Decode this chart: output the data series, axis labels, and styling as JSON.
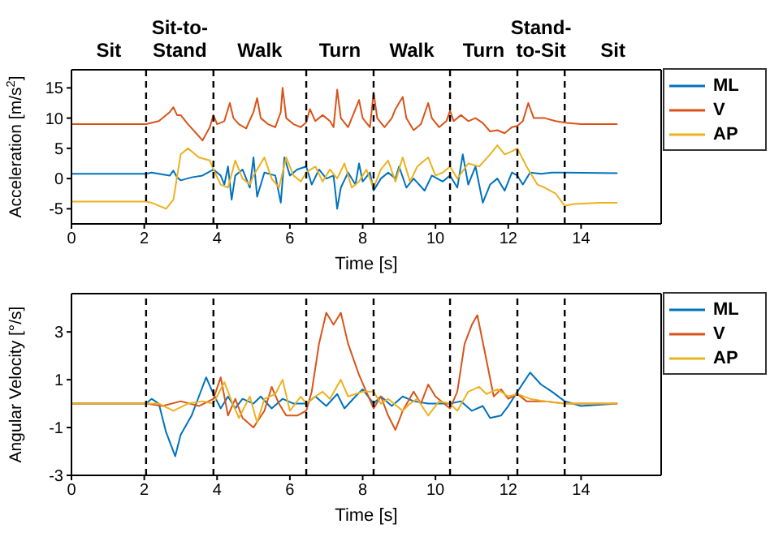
{
  "chart_data": [
    {
      "type": "line",
      "xlabel": "Time [s]",
      "ylabel": "Acceleration [m/s$^{2}$]",
      "xlim": [
        0,
        16.2
      ],
      "xticks": [
        0,
        2,
        4,
        6,
        8,
        10,
        12,
        14
      ],
      "ylim": [
        -7.5,
        18
      ],
      "yticks": [
        -5,
        0,
        5,
        10,
        15
      ],
      "legend": "top right",
      "series": [
        {
          "name": "ML",
          "color": "#0072bd",
          "x": [
            0,
            2.05,
            2.2,
            2.7,
            2.8,
            2.9,
            3.0,
            3.3,
            3.6,
            3.9,
            4.1,
            4.2,
            4.3,
            4.4,
            4.5,
            4.7,
            4.9,
            5.0,
            5.1,
            5.3,
            5.6,
            5.75,
            5.85,
            6.0,
            6.2,
            6.45,
            6.6,
            6.8,
            7.0,
            7.2,
            7.3,
            7.4,
            7.6,
            7.8,
            7.9,
            8.0,
            8.2,
            8.3,
            8.5,
            8.7,
            8.9,
            9.0,
            9.2,
            9.4,
            9.7,
            9.9,
            10.2,
            10.4,
            10.6,
            10.75,
            10.9,
            11.1,
            11.3,
            11.5,
            11.7,
            11.9,
            12.1,
            12.25,
            12.4,
            12.6,
            12.9,
            13.2,
            13.55,
            15
          ],
          "values": [
            0.8,
            0.8,
            1.0,
            0.5,
            1.3,
            0.2,
            -0.3,
            0.2,
            0.5,
            1.5,
            0.5,
            -1,
            2,
            -3.5,
            0.5,
            1.5,
            -1.5,
            3.5,
            -3,
            1,
            0.5,
            -4,
            3.5,
            0.5,
            1.5,
            2,
            -1,
            1.5,
            0,
            0.5,
            -5,
            -1.5,
            1,
            -1,
            2.5,
            -0.5,
            1,
            -2,
            0,
            1,
            0,
            2,
            -1.5,
            0,
            -2,
            0.5,
            -0.5,
            0.5,
            -1.5,
            4,
            -1,
            2,
            -4,
            -1,
            0,
            -2,
            1,
            0.5,
            -1,
            1,
            0.8,
            1,
            1,
            0.9
          ]
        },
        {
          "name": "V",
          "color": "#d95319",
          "x": [
            0,
            2.05,
            2.4,
            2.7,
            2.8,
            2.9,
            3.0,
            3.2,
            3.5,
            3.6,
            3.8,
            3.9,
            4.0,
            4.2,
            4.35,
            4.45,
            4.6,
            4.8,
            5.0,
            5.1,
            5.2,
            5.4,
            5.6,
            5.75,
            5.8,
            5.9,
            6.1,
            6.3,
            6.45,
            6.55,
            6.7,
            6.9,
            7.1,
            7.2,
            7.3,
            7.4,
            7.6,
            7.9,
            8.0,
            8.2,
            8.3,
            8.4,
            8.6,
            8.8,
            8.9,
            9.1,
            9.2,
            9.4,
            9.6,
            9.8,
            9.9,
            10.1,
            10.3,
            10.4,
            10.5,
            10.7,
            10.9,
            11.1,
            11.3,
            11.5,
            11.7,
            11.9,
            12.1,
            12.25,
            12.4,
            12.55,
            12.7,
            13.0,
            13.3,
            13.6,
            14,
            15
          ],
          "values": [
            9,
            9,
            9.5,
            11,
            11.8,
            10.5,
            10.5,
            9,
            7,
            6.3,
            8.5,
            10.5,
            9,
            9.5,
            12.5,
            10,
            9,
            8.3,
            11,
            13.3,
            10,
            9,
            8.5,
            11,
            15,
            10,
            9,
            8.5,
            9.3,
            11.5,
            9.5,
            10.5,
            9.5,
            8.5,
            14.7,
            10,
            8.5,
            13,
            10,
            8.5,
            14.2,
            10,
            8.5,
            10,
            11.5,
            13.5,
            10,
            8,
            9,
            12.5,
            10,
            8.5,
            9.5,
            11.2,
            9.5,
            10.5,
            9.5,
            10,
            9.2,
            7.8,
            8,
            7.5,
            8.5,
            8.7,
            9.5,
            12.5,
            10,
            10,
            9.5,
            9.2,
            9,
            9
          ]
        },
        {
          "name": "AP",
          "color": "#edb120",
          "x": [
            0,
            2.05,
            2.2,
            2.6,
            2.8,
            3.0,
            3.2,
            3.5,
            3.8,
            3.9,
            4.1,
            4.3,
            4.5,
            4.7,
            4.9,
            5.0,
            5.3,
            5.5,
            5.7,
            5.9,
            6.1,
            6.3,
            6.45,
            6.7,
            6.9,
            7.1,
            7.3,
            7.5,
            7.7,
            7.9,
            8.1,
            8.3,
            8.5,
            8.7,
            8.9,
            9.1,
            9.3,
            9.5,
            9.8,
            10.0,
            10.2,
            10.4,
            10.6,
            10.9,
            11.2,
            11.5,
            11.7,
            11.9,
            12.1,
            12.25,
            12.5,
            12.8,
            13.0,
            13.3,
            13.55,
            13.8,
            14.5,
            15
          ],
          "values": [
            -3.8,
            -3.8,
            -4,
            -5,
            -3.5,
            4,
            5,
            3.5,
            3,
            1.5,
            -1,
            -1.5,
            3,
            0,
            -1,
            0.5,
            3.5,
            0,
            -1.5,
            3.5,
            0.5,
            -0.5,
            1,
            2,
            -0.5,
            1.5,
            0,
            2.5,
            -1.5,
            -0.5,
            1.5,
            -1.5,
            1.5,
            3,
            -0.5,
            3.5,
            -0.5,
            2,
            3.5,
            0.5,
            1,
            2,
            0,
            2.5,
            2,
            4,
            5.5,
            4,
            4.5,
            5,
            2,
            -1,
            -1.5,
            -2.5,
            -4.5,
            -4.2,
            -4,
            -4
          ]
        }
      ],
      "ref_lines": [
        {
          "axis": "x",
          "value": 2.05,
          "color": "#000000",
          "line_style": "dashed"
        },
        {
          "axis": "x",
          "value": 3.9,
          "color": "#000000",
          "line_style": "dashed"
        },
        {
          "axis": "x",
          "value": 6.45,
          "color": "#000000",
          "line_style": "dashed"
        },
        {
          "axis": "x",
          "value": 8.3,
          "color": "#000000",
          "line_style": "dashed"
        },
        {
          "axis": "x",
          "value": 10.4,
          "color": "#000000",
          "line_style": "dashed"
        },
        {
          "axis": "x",
          "value": 12.25,
          "color": "#000000",
          "line_style": "dashed"
        },
        {
          "axis": "x",
          "value": 13.55,
          "color": "#000000",
          "line_style": "dashed"
        }
      ],
      "annotations": [
        "Sit",
        "Sit-to-Stand",
        "Walk",
        "Turn",
        "Walk",
        "Turn",
        "Stand-to-Sit",
        "Sit"
      ]
    },
    {
      "type": "line",
      "xlabel": "Time [s]",
      "ylabel": "Angular Velocity [°/s]",
      "xlim": [
        0,
        16.2
      ],
      "xticks": [
        0,
        2,
        4,
        6,
        8,
        10,
        12,
        14
      ],
      "ylim": [
        -3,
        4.6
      ],
      "yticks": [
        -3,
        -1,
        1,
        3
      ],
      "legend": "top right",
      "series": [
        {
          "name": "ML",
          "color": "#0072bd",
          "x": [
            0,
            2.05,
            2.2,
            2.4,
            2.6,
            2.85,
            3.0,
            3.3,
            3.5,
            3.7,
            3.9,
            4.1,
            4.3,
            4.5,
            4.7,
            5.0,
            5.2,
            5.5,
            5.8,
            6.1,
            6.45,
            6.7,
            7.0,
            7.3,
            7.5,
            7.8,
            8.0,
            8.3,
            8.5,
            8.8,
            9.1,
            9.4,
            9.8,
            10.1,
            10.4,
            10.7,
            11.0,
            11.3,
            11.5,
            11.8,
            12.0,
            12.25,
            12.6,
            12.9,
            13.2,
            13.55,
            14,
            15
          ],
          "values": [
            0,
            0,
            0.2,
            0,
            -1.2,
            -2.2,
            -1.3,
            -0.5,
            0.3,
            1.1,
            0.4,
            -0.2,
            0.3,
            -0.2,
            0.2,
            0,
            0.3,
            -0.2,
            0.2,
            0,
            0,
            0.3,
            -0.1,
            0.4,
            -0.2,
            0.3,
            0.6,
            0,
            0.3,
            -0.1,
            0.3,
            0.1,
            0,
            0,
            0,
            0.1,
            -0.3,
            -0.1,
            -0.6,
            -0.5,
            -0.1,
            0.5,
            1.3,
            0.8,
            0.5,
            0.1,
            -0.1,
            0
          ]
        },
        {
          "name": "V",
          "color": "#d95319",
          "x": [
            0,
            2.05,
            2.5,
            3.0,
            3.5,
            3.9,
            4.1,
            4.3,
            4.5,
            4.7,
            5.0,
            5.3,
            5.5,
            5.7,
            5.9,
            6.2,
            6.45,
            6.6,
            6.8,
            7.0,
            7.2,
            7.4,
            7.6,
            7.9,
            8.1,
            8.3,
            8.5,
            8.7,
            8.9,
            9.1,
            9.4,
            9.6,
            9.8,
            10.0,
            10.4,
            10.6,
            10.8,
            11.0,
            11.15,
            11.35,
            11.6,
            11.8,
            12.0,
            12.25,
            12.5,
            13.0,
            13.55,
            15
          ],
          "values": [
            0,
            0,
            -0.1,
            0.1,
            -0.1,
            0.2,
            1.1,
            -0.5,
            0.2,
            -0.6,
            -1,
            -0.3,
            0.7,
            0,
            -0.5,
            -0.5,
            -0.3,
            0.5,
            2.5,
            3.8,
            3.3,
            3.8,
            2.5,
            1.2,
            0.5,
            -0.2,
            0.3,
            -0.5,
            -1.1,
            -0.3,
            0.5,
            0,
            0.8,
            0.3,
            -0.2,
            0.5,
            2.5,
            3.3,
            3.7,
            2.2,
            0.3,
            0.6,
            0.2,
            0.4,
            0.1,
            0.1,
            0,
            0
          ]
        },
        {
          "name": "AP",
          "color": "#edb120",
          "x": [
            0,
            2.05,
            2.4,
            2.8,
            3.2,
            3.6,
            3.9,
            4.2,
            4.4,
            4.6,
            4.9,
            5.1,
            5.3,
            5.6,
            5.8,
            6.0,
            6.3,
            6.45,
            6.7,
            6.9,
            7.1,
            7.4,
            7.6,
            7.8,
            8.0,
            8.3,
            8.5,
            8.7,
            9.1,
            9.3,
            9.5,
            9.8,
            10.1,
            10.4,
            10.6,
            10.9,
            11.2,
            11.4,
            11.7,
            12.0,
            12.25,
            12.6,
            13.0,
            13.55,
            15
          ],
          "values": [
            0,
            0,
            0,
            -0.3,
            0,
            0.1,
            0,
            0.9,
            0.1,
            -0.6,
            0.3,
            -0.8,
            0.2,
            0.4,
            1.0,
            -0.3,
            0.3,
            0,
            0.3,
            0.5,
            0.2,
            1.0,
            0.3,
            0.4,
            0.5,
            0.5,
            0,
            0.2,
            -0.3,
            0,
            0.2,
            -0.5,
            0.1,
            0,
            -0.3,
            0.5,
            0.7,
            0.4,
            0.6,
            0.3,
            0.4,
            0.2,
            0.1,
            0,
            0
          ]
        }
      ],
      "ref_lines": [
        {
          "axis": "x",
          "value": 2.05,
          "color": "#000000",
          "line_style": "dashed"
        },
        {
          "axis": "x",
          "value": 3.9,
          "color": "#000000",
          "line_style": "dashed"
        },
        {
          "axis": "x",
          "value": 6.45,
          "color": "#000000",
          "line_style": "dashed"
        },
        {
          "axis": "x",
          "value": 8.3,
          "color": "#000000",
          "line_style": "dashed"
        },
        {
          "axis": "x",
          "value": 10.4,
          "color": "#000000",
          "line_style": "dashed"
        },
        {
          "axis": "x",
          "value": 12.25,
          "color": "#000000",
          "line_style": "dashed"
        },
        {
          "axis": "x",
          "value": 13.55,
          "color": "#000000",
          "line_style": "dashed"
        }
      ]
    }
  ]
}
